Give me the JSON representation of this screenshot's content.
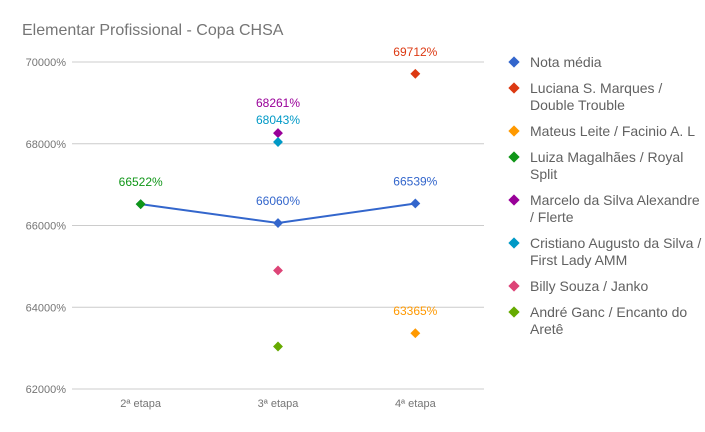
{
  "chart_data": {
    "type": "line",
    "title": "Elementar Profissional - Copa CHSA",
    "categories": [
      "2ª etapa",
      "3ª etapa",
      "4ª etapa"
    ],
    "ylim": [
      62000,
      70000
    ],
    "yticks": [
      62000,
      64000,
      66000,
      68000,
      70000
    ],
    "ytick_labels": [
      "62000%",
      "64000%",
      "66000%",
      "68000%",
      "70000%"
    ],
    "grid": true,
    "legend": "right",
    "series": [
      {
        "name": "Nota média",
        "color": "#3366cc",
        "line": true,
        "values": [
          66522,
          66060,
          66539
        ],
        "labels": [
          "",
          "66060%",
          "66539%"
        ]
      },
      {
        "name": "Luciana S. Marques / Double Trouble",
        "color": "#dc3912",
        "values": [
          null,
          null,
          69712
        ],
        "labels": [
          "",
          "",
          "69712%"
        ]
      },
      {
        "name": "Mateus Leite / Facinio A. L",
        "color": "#ff9900",
        "values": [
          null,
          null,
          63365
        ],
        "labels": [
          "",
          "",
          "63365%"
        ]
      },
      {
        "name": "Luiza Magalhães / Royal Split",
        "color": "#109618",
        "values": [
          66522,
          null,
          null
        ],
        "labels": [
          "66522%",
          "",
          ""
        ]
      },
      {
        "name": "Marcelo da Silva Alexandre / Flerte",
        "color": "#990099",
        "values": [
          null,
          68261,
          null
        ],
        "labels": [
          "",
          "68261%",
          ""
        ]
      },
      {
        "name": "Cristiano Augusto da Silva / First Lady AMM",
        "color": "#0099c6",
        "values": [
          null,
          68043,
          null
        ],
        "labels": [
          "",
          "68043%",
          ""
        ]
      },
      {
        "name": "Billy Souza / Janko",
        "color": "#dd4477",
        "values": [
          null,
          64900,
          null
        ],
        "labels": [
          "",
          "",
          ""
        ]
      },
      {
        "name": "André Ganc / Encanto do Aretê",
        "color": "#66aa00",
        "values": [
          null,
          63040,
          null
        ],
        "labels": [
          "",
          "",
          ""
        ]
      }
    ]
  }
}
